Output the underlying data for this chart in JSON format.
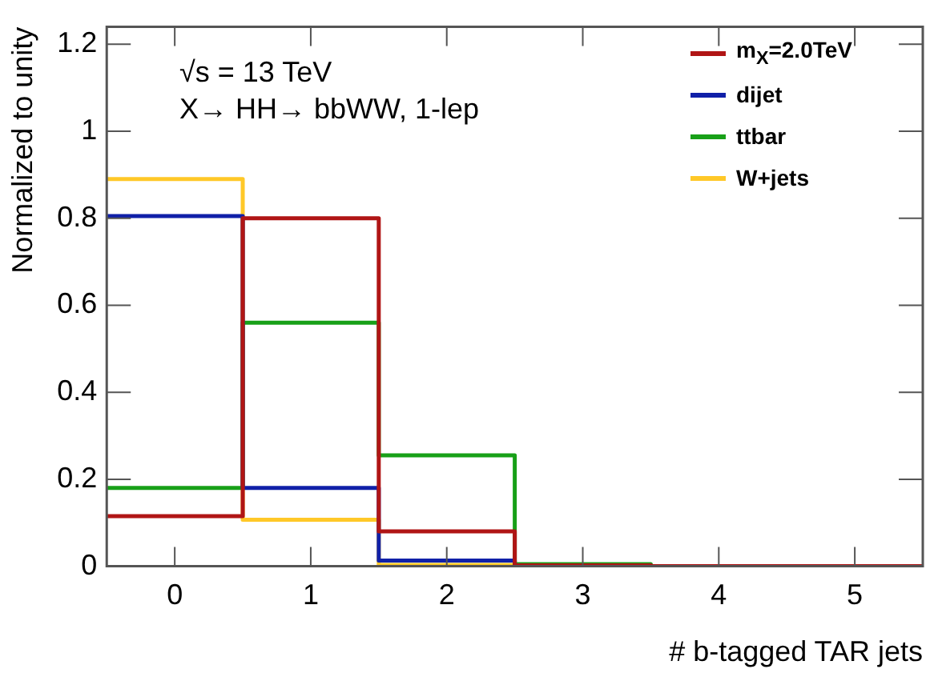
{
  "chart_data": {
    "type": "histogram",
    "xlabel": "# b-tagged TAR jets",
    "ylabel": "Normalized to unity",
    "annotations": [
      "√s = 13 TeV",
      "X→ HH→ bbWW, 1-lep"
    ],
    "bins": [
      -0.5,
      0.5,
      1.5,
      2.5,
      3.5,
      4.5,
      5.5
    ],
    "series": [
      {
        "name": "m$_{X}$=2.0TeV",
        "color": "#b01515",
        "values": [
          0.115,
          0.8,
          0.08,
          0.002,
          0,
          0
        ]
      },
      {
        "name": "dijet",
        "color": "#1020a8",
        "values": [
          0.805,
          0.18,
          0.013,
          0.001,
          0,
          0
        ]
      },
      {
        "name": "ttbar",
        "color": "#18a018",
        "values": [
          0.18,
          0.56,
          0.255,
          0.005,
          0,
          0
        ]
      },
      {
        "name": "W+jets",
        "color": "#ffc828",
        "values": [
          0.89,
          0.107,
          0.003,
          0,
          0,
          0
        ]
      }
    ],
    "xlim": [
      -0.5,
      5.5
    ],
    "xticks": [
      0,
      1,
      2,
      3,
      4,
      5
    ],
    "ylim": [
      0,
      1.24
    ],
    "yticks": [
      0,
      0.2,
      0.4,
      0.6,
      0.8,
      1,
      1.2
    ],
    "legend": "top right",
    "marker": "none",
    "line_style": "solid"
  }
}
